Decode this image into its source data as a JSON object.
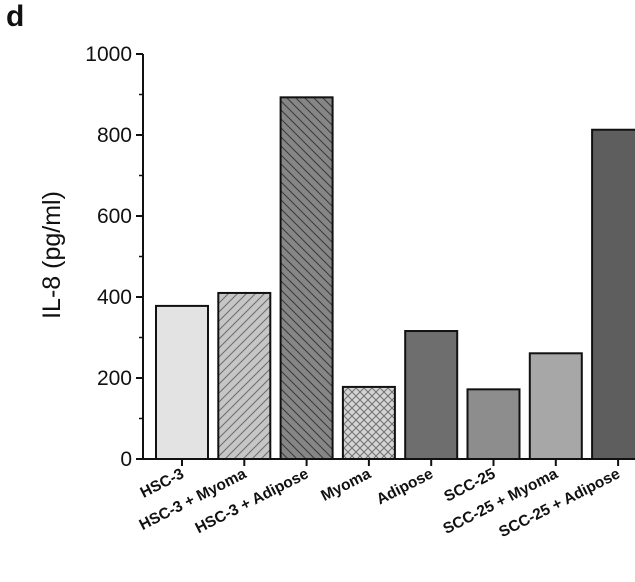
{
  "panel_label": "d",
  "chart_data": {
    "type": "bar",
    "title": "",
    "xlabel": "",
    "ylabel": "IL-8 (pg/ml)",
    "ylim": [
      0,
      1000
    ],
    "yticks": [
      0,
      200,
      400,
      600,
      800,
      1000
    ],
    "grid": false,
    "categories": [
      "HSC-3",
      "HSC-3 + Myoma",
      "HSC-3 + Adipose",
      "Myoma",
      "Adipose",
      "SCC-25",
      "SCC-25 + Myoma",
      "SCC-25 + Adipose"
    ],
    "values": [
      378,
      410,
      893,
      178,
      316,
      172,
      261,
      813
    ],
    "colors": [
      "#e3e3e3",
      "#c4c4c4",
      "#7f7f7f",
      "#d0d0d0",
      "#6e6e6e",
      "#8d8d8d",
      "#a7a7a7",
      "#5e5e5e"
    ],
    "patterns": [
      "solid",
      "diagonal-up",
      "diagonal-down",
      "crosshatch",
      "solid",
      "solid",
      "solid",
      "solid"
    ]
  }
}
